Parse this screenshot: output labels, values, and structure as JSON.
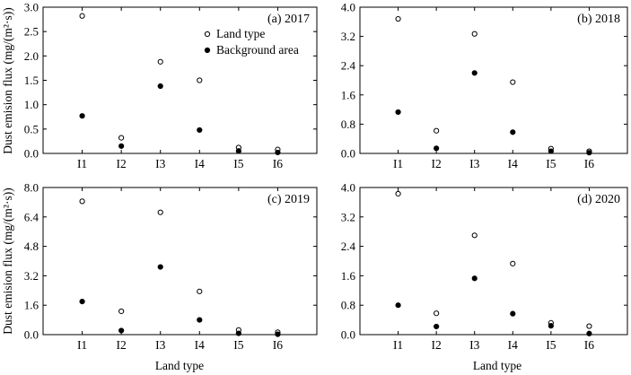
{
  "figure": {
    "ylabel": "Dust emision flux (mg/(m²·s))",
    "xlabel": "Land type"
  },
  "chart_data": [
    {
      "type": "scatter",
      "panel_label": "(a) 2017",
      "categories": [
        "I1",
        "I2",
        "I3",
        "I4",
        "I5",
        "I6"
      ],
      "ylim": [
        0,
        3.0
      ],
      "yticks": [
        "0.0",
        "0.5",
        "1.0",
        "1.5",
        "2.0",
        "2.5",
        "3.0"
      ],
      "legend": {
        "placement": "top-right",
        "entries": [
          "Land type",
          "Background area"
        ]
      },
      "series": [
        {
          "name": "Land type",
          "marker": "open-circle",
          "values": [
            2.82,
            0.32,
            1.88,
            1.5,
            0.12,
            0.08
          ]
        },
        {
          "name": "Background area",
          "marker": "filled-circle",
          "values": [
            0.77,
            0.15,
            1.38,
            0.48,
            0.05,
            0.02
          ]
        }
      ]
    },
    {
      "type": "scatter",
      "panel_label": "(b) 2018",
      "categories": [
        "I1",
        "I2",
        "I3",
        "I4",
        "I5",
        "I6"
      ],
      "ylim": [
        0,
        4.0
      ],
      "yticks": [
        "0.0",
        "0.8",
        "1.6",
        "2.4",
        "3.2",
        "4.0"
      ],
      "series": [
        {
          "name": "Land type",
          "marker": "open-circle",
          "values": [
            3.68,
            0.62,
            3.27,
            1.95,
            0.13,
            0.06
          ]
        },
        {
          "name": "Background area",
          "marker": "filled-circle",
          "values": [
            1.13,
            0.14,
            2.2,
            0.58,
            0.06,
            0.02
          ]
        }
      ]
    },
    {
      "type": "scatter",
      "panel_label": "(c) 2019",
      "categories": [
        "I1",
        "I2",
        "I3",
        "I4",
        "I5",
        "I6"
      ],
      "ylim": [
        0,
        8.0
      ],
      "yticks": [
        "0.0",
        "1.6",
        "3.2",
        "4.8",
        "6.4",
        "8.0"
      ],
      "series": [
        {
          "name": "Land type",
          "marker": "open-circle",
          "values": [
            7.25,
            1.27,
            6.65,
            2.35,
            0.25,
            0.13
          ]
        },
        {
          "name": "Background area",
          "marker": "filled-circle",
          "values": [
            1.8,
            0.22,
            3.68,
            0.8,
            0.07,
            0.02
          ]
        }
      ]
    },
    {
      "type": "scatter",
      "panel_label": "(d) 2020",
      "categories": [
        "I1",
        "I2",
        "I3",
        "I4",
        "I5",
        "I6"
      ],
      "ylim": [
        0,
        4.0
      ],
      "yticks": [
        "0.0",
        "0.8",
        "1.6",
        "2.4",
        "3.2",
        "4.0"
      ],
      "series": [
        {
          "name": "Land type",
          "marker": "open-circle",
          "values": [
            3.83,
            0.58,
            2.7,
            1.93,
            0.32,
            0.23
          ]
        },
        {
          "name": "Background area",
          "marker": "filled-circle",
          "values": [
            0.8,
            0.22,
            1.53,
            0.57,
            0.24,
            0.03
          ]
        }
      ]
    }
  ]
}
